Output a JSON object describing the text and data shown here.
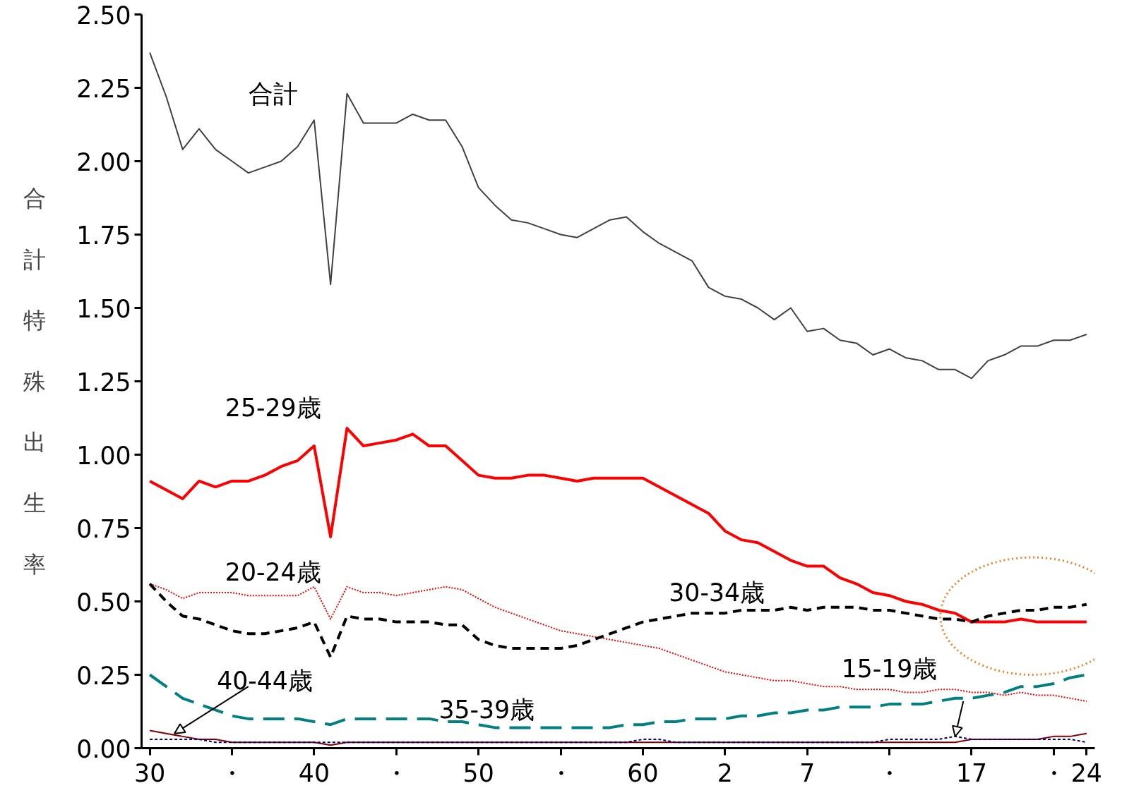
{
  "chart_data": {
    "type": "line",
    "ylabel": "合計特殊出生率",
    "grid": false,
    "marker": "none",
    "categories": [
      "30",
      null,
      null,
      null,
      null,
      "・",
      null,
      null,
      null,
      null,
      "40",
      null,
      null,
      null,
      null,
      "・",
      null,
      null,
      null,
      null,
      "50",
      null,
      null,
      null,
      null,
      "・",
      null,
      null,
      null,
      null,
      "60",
      null,
      null,
      null,
      null,
      "2",
      null,
      null,
      null,
      null,
      "7",
      null,
      null,
      null,
      null,
      "・",
      null,
      null,
      null,
      null,
      "17",
      null,
      null,
      null,
      null,
      "・",
      null,
      "24"
    ],
    "ylim": [
      0,
      2.5
    ],
    "yticks": [
      {
        "value": 0,
        "label": "0.00"
      },
      {
        "value": 0.25,
        "label": "0.25"
      },
      {
        "value": 0.5,
        "label": "0.50"
      },
      {
        "value": 0.75,
        "label": "0.75"
      },
      {
        "value": 1,
        "label": "1.00"
      },
      {
        "value": 1.25,
        "label": "1.25"
      },
      {
        "value": 1.5,
        "label": "1.50"
      },
      {
        "value": 1.75,
        "label": "1.75"
      },
      {
        "value": 2,
        "label": "2.00"
      },
      {
        "value": 2.25,
        "label": "2.25"
      },
      {
        "value": 2.5,
        "label": "2.50"
      }
    ],
    "series": [
      {
        "name": "合計",
        "color": "#404040",
        "line_style": "solid",
        "values": [
          2.37,
          2.22,
          2.04,
          2.11,
          2.04,
          2.0,
          1.96,
          1.98,
          2.0,
          2.05,
          2.14,
          1.58,
          2.23,
          2.13,
          2.13,
          2.13,
          2.16,
          2.14,
          2.14,
          2.05,
          1.91,
          1.85,
          1.8,
          1.79,
          1.77,
          1.75,
          1.74,
          1.77,
          1.8,
          1.81,
          1.76,
          1.72,
          1.69,
          1.66,
          1.57,
          1.54,
          1.53,
          1.5,
          1.46,
          1.5,
          1.42,
          1.43,
          1.39,
          1.38,
          1.34,
          1.36,
          1.33,
          1.32,
          1.29,
          1.29,
          1.26,
          1.32,
          1.34,
          1.37,
          1.37,
          1.39,
          1.39,
          1.41
        ]
      },
      {
        "name": "25-29歳",
        "color": "#ff0000",
        "line_style": "solid",
        "values": [
          0.91,
          0.88,
          0.85,
          0.91,
          0.89,
          0.91,
          0.91,
          0.93,
          0.96,
          0.98,
          1.03,
          0.72,
          1.09,
          1.03,
          1.04,
          1.05,
          1.07,
          1.03,
          1.03,
          0.98,
          0.93,
          0.92,
          0.92,
          0.93,
          0.93,
          0.92,
          0.91,
          0.92,
          0.92,
          0.92,
          0.92,
          0.89,
          0.86,
          0.83,
          0.8,
          0.74,
          0.71,
          0.7,
          0.67,
          0.64,
          0.62,
          0.62,
          0.58,
          0.56,
          0.53,
          0.52,
          0.5,
          0.49,
          0.47,
          0.46,
          0.43,
          0.43,
          0.43,
          0.44,
          0.43,
          0.43,
          0.43,
          0.43
        ]
      },
      {
        "name": "20-24歳",
        "color": "#ff0000",
        "line_style": "dotted",
        "values": [
          0.56,
          0.54,
          0.51,
          0.53,
          0.53,
          0.53,
          0.52,
          0.52,
          0.52,
          0.52,
          0.55,
          0.44,
          0.55,
          0.53,
          0.53,
          0.52,
          0.53,
          0.54,
          0.55,
          0.54,
          0.51,
          0.48,
          0.46,
          0.44,
          0.42,
          0.4,
          0.39,
          0.38,
          0.37,
          0.36,
          0.35,
          0.34,
          0.32,
          0.3,
          0.28,
          0.26,
          0.25,
          0.24,
          0.23,
          0.23,
          0.22,
          0.21,
          0.21,
          0.2,
          0.2,
          0.2,
          0.19,
          0.19,
          0.2,
          0.2,
          0.19,
          0.19,
          0.18,
          0.19,
          0.18,
          0.18,
          0.17,
          0.16
        ]
      },
      {
        "name": "30-34歳",
        "color": "#000000",
        "line_style": "dashed",
        "values": [
          0.56,
          0.5,
          0.45,
          0.44,
          0.42,
          0.4,
          0.39,
          0.39,
          0.4,
          0.41,
          0.43,
          0.31,
          0.45,
          0.44,
          0.44,
          0.43,
          0.43,
          0.43,
          0.42,
          0.42,
          0.37,
          0.35,
          0.34,
          0.34,
          0.34,
          0.34,
          0.35,
          0.37,
          0.39,
          0.41,
          0.43,
          0.44,
          0.45,
          0.46,
          0.46,
          0.46,
          0.47,
          0.47,
          0.47,
          0.48,
          0.47,
          0.48,
          0.48,
          0.48,
          0.47,
          0.47,
          0.46,
          0.45,
          0.44,
          0.44,
          0.43,
          0.45,
          0.46,
          0.47,
          0.47,
          0.48,
          0.48,
          0.49
        ]
      },
      {
        "name": "35-39歳",
        "color": "#008080",
        "line_style": "dashed",
        "values": [
          0.25,
          0.21,
          0.17,
          0.15,
          0.13,
          0.11,
          0.1,
          0.1,
          0.1,
          0.1,
          0.09,
          0.08,
          0.1,
          0.1,
          0.1,
          0.1,
          0.1,
          0.1,
          0.09,
          0.09,
          0.08,
          0.07,
          0.07,
          0.07,
          0.07,
          0.07,
          0.07,
          0.07,
          0.07,
          0.08,
          0.08,
          0.09,
          0.09,
          0.1,
          0.1,
          0.1,
          0.11,
          0.11,
          0.12,
          0.12,
          0.13,
          0.13,
          0.14,
          0.14,
          0.14,
          0.15,
          0.15,
          0.15,
          0.16,
          0.17,
          0.17,
          0.18,
          0.19,
          0.21,
          0.21,
          0.22,
          0.24,
          0.25
        ]
      },
      {
        "name": "40-44歳",
        "color": "#800000",
        "line_style": "solid",
        "values": [
          0.06,
          0.05,
          0.04,
          0.03,
          0.03,
          0.02,
          0.02,
          0.02,
          0.02,
          0.02,
          0.02,
          0.01,
          0.02,
          0.02,
          0.02,
          0.02,
          0.02,
          0.02,
          0.02,
          0.02,
          0.02,
          0.02,
          0.02,
          0.02,
          0.02,
          0.02,
          0.02,
          0.02,
          0.02,
          0.02,
          0.02,
          0.02,
          0.02,
          0.02,
          0.02,
          0.02,
          0.02,
          0.02,
          0.02,
          0.02,
          0.02,
          0.02,
          0.02,
          0.02,
          0.02,
          0.02,
          0.02,
          0.02,
          0.02,
          0.02,
          0.03,
          0.03,
          0.03,
          0.03,
          0.03,
          0.04,
          0.04,
          0.05
        ]
      },
      {
        "name": "15-19歳",
        "color": "#000080",
        "line_style": "dotted",
        "values": [
          0.03,
          0.03,
          0.03,
          0.03,
          0.02,
          0.02,
          0.02,
          0.02,
          0.02,
          0.02,
          0.02,
          0.02,
          0.02,
          0.02,
          0.02,
          0.02,
          0.02,
          0.02,
          0.02,
          0.02,
          0.02,
          0.02,
          0.02,
          0.02,
          0.02,
          0.02,
          0.02,
          0.02,
          0.02,
          0.02,
          0.03,
          0.03,
          0.02,
          0.02,
          0.02,
          0.02,
          0.02,
          0.02,
          0.02,
          0.02,
          0.02,
          0.02,
          0.02,
          0.02,
          0.02,
          0.03,
          0.03,
          0.03,
          0.03,
          0.04,
          0.03,
          0.03,
          0.03,
          0.03,
          0.03,
          0.03,
          0.03,
          0.02
        ]
      }
    ]
  }
}
